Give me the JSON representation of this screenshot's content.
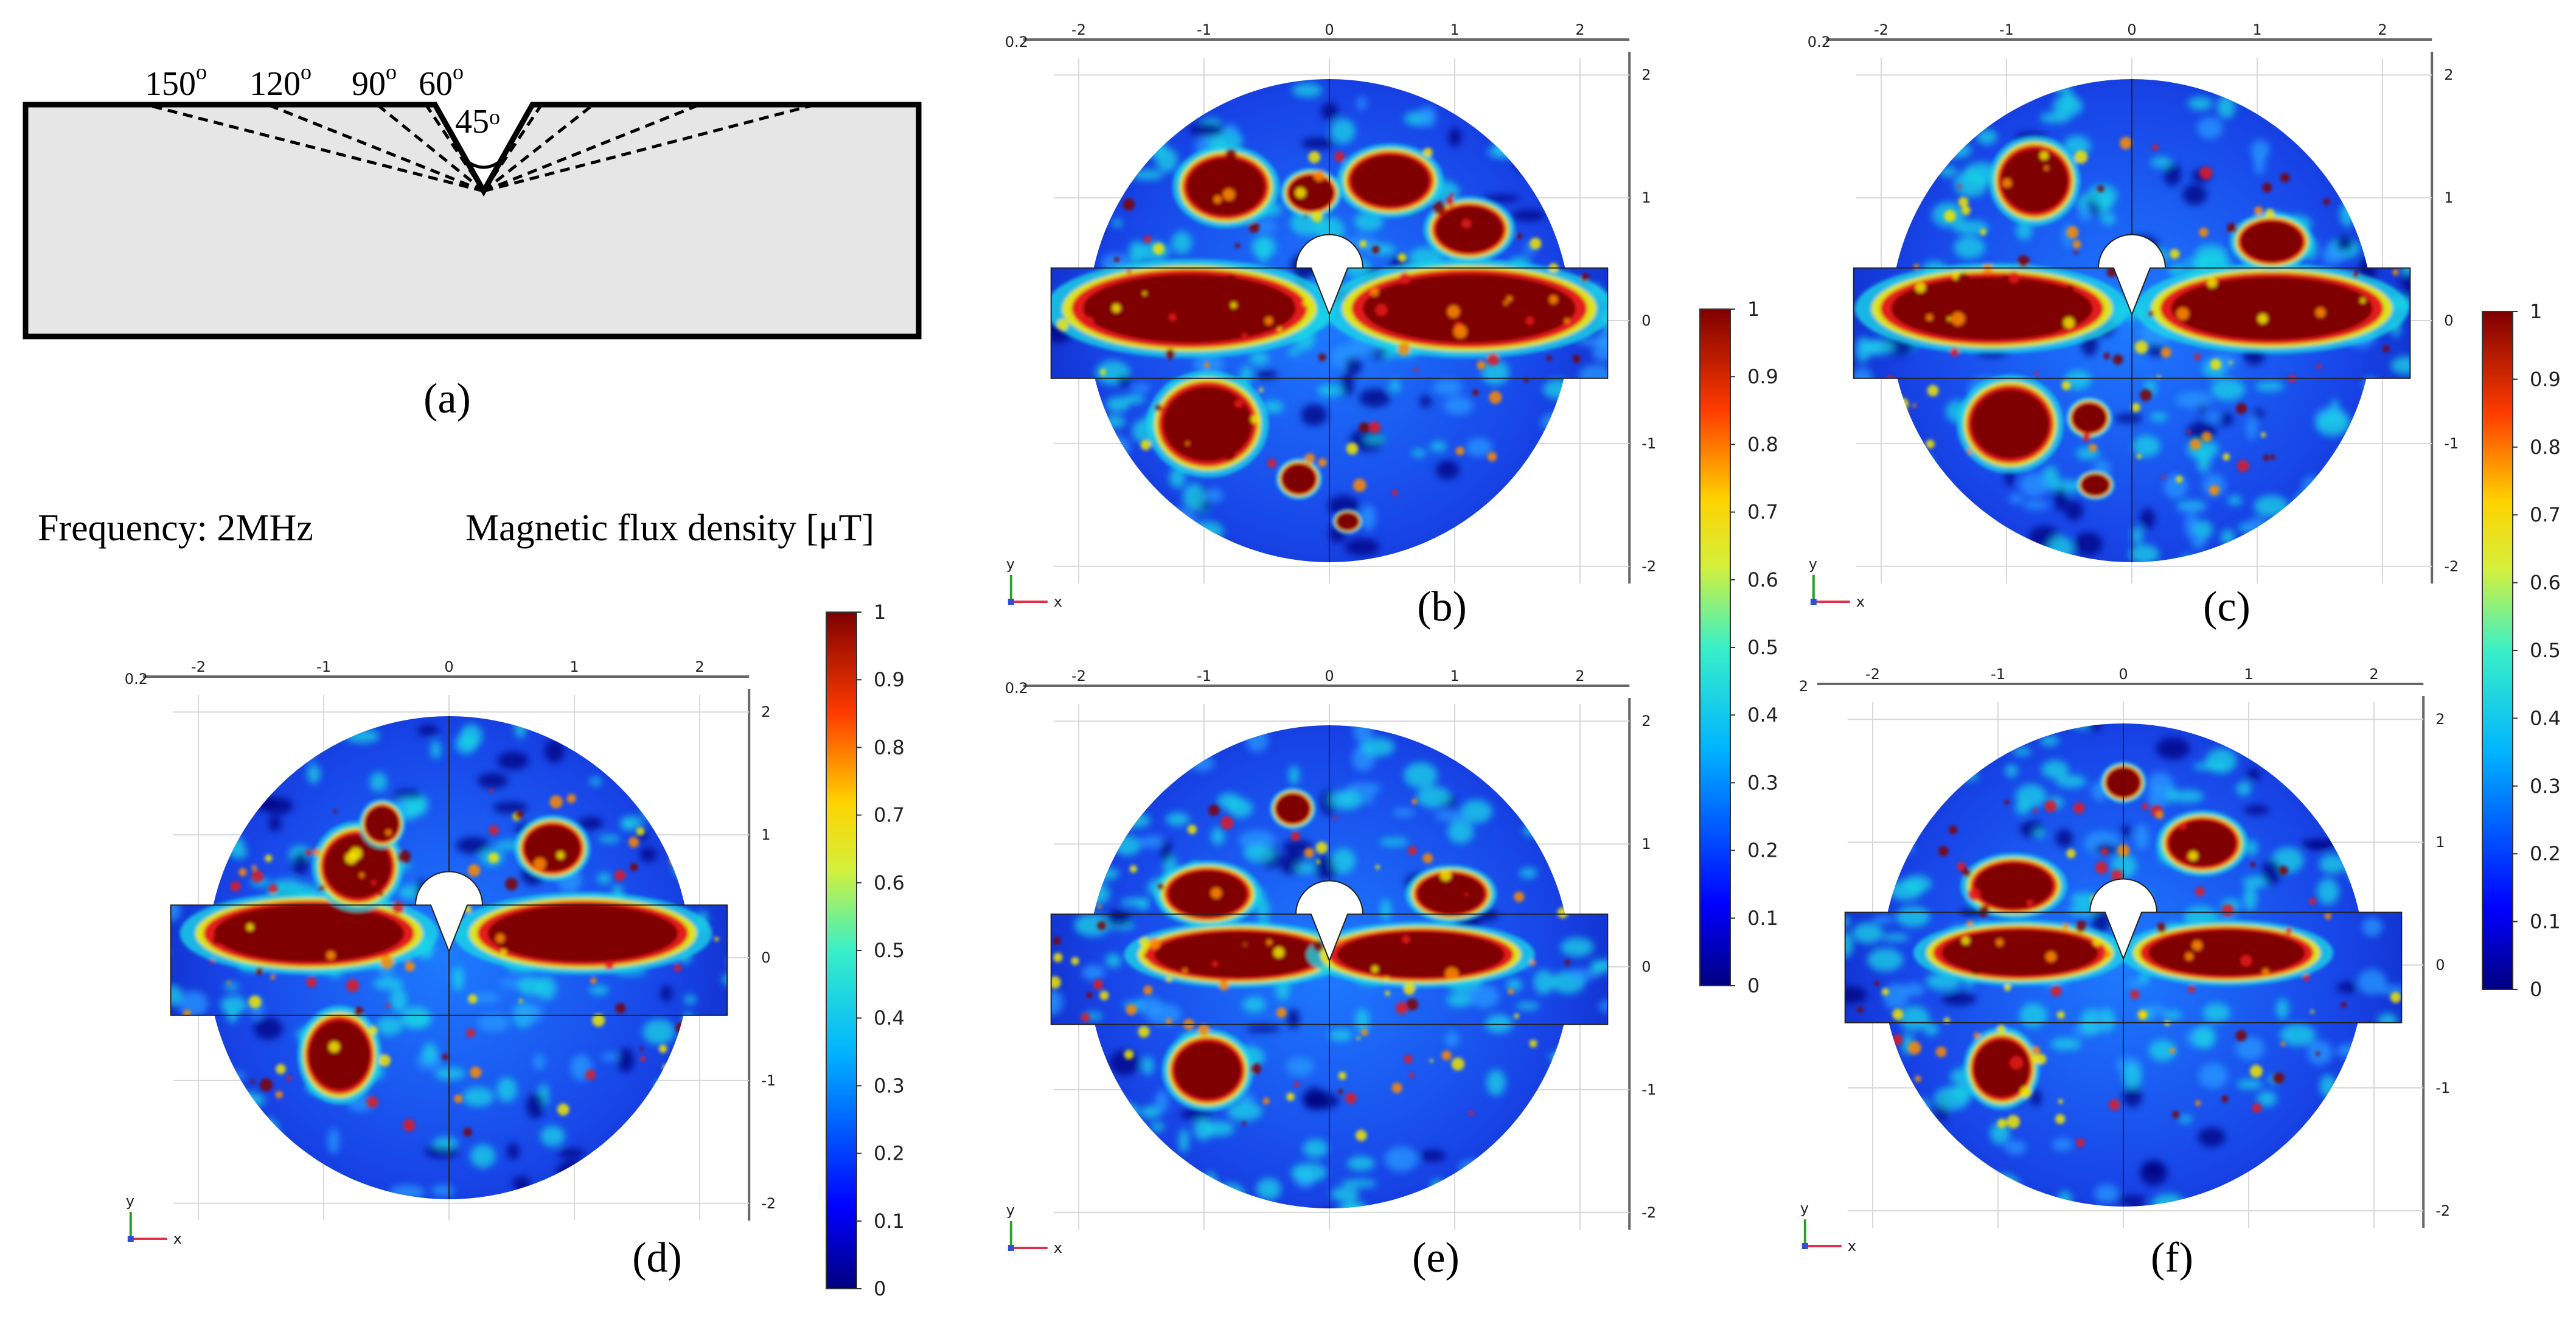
{
  "diagram": {
    "panel_label": "(a)",
    "angles": [
      "150",
      "120",
      "90",
      "60"
    ],
    "degree_mark": "o",
    "notch_angle": "45",
    "notch_degree_mark": "o"
  },
  "caption": {
    "frequency": "Frequency: 2MHz",
    "quantity": "Magnetic flux density [μT]"
  },
  "plots": [
    {
      "label": "(b)",
      "x_ticks": [
        "-2",
        "-1",
        "0",
        "1",
        "2"
      ],
      "y_ticks": [
        "2",
        "1",
        "0",
        "-1",
        "-2"
      ],
      "corner": "0.2",
      "y_axis": "y",
      "x_axis": "x"
    },
    {
      "label": "(c)",
      "x_ticks": [
        "-2",
        "-1",
        "0",
        "1",
        "2"
      ],
      "y_ticks": [
        "2",
        "1",
        "0",
        "-1",
        "-2"
      ],
      "corner": "0.2",
      "y_axis": "y",
      "x_axis": "x"
    },
    {
      "label": "(d)",
      "x_ticks": [
        "-2",
        "-1",
        "0",
        "1",
        "2"
      ],
      "y_ticks": [
        "2",
        "1",
        "0",
        "-1",
        "-2"
      ],
      "corner": "0.2",
      "y_axis": "y",
      "x_axis": "x"
    },
    {
      "label": "(e)",
      "x_ticks": [
        "-2",
        "-1",
        "0",
        "1",
        "2"
      ],
      "y_ticks": [
        "2",
        "1",
        "0",
        "-1",
        "-2"
      ],
      "corner": "0.2",
      "y_axis": "y",
      "x_axis": "x"
    },
    {
      "label": "(f)",
      "x_ticks": [
        "-2",
        "-1",
        "0",
        "1",
        "2"
      ],
      "y_ticks": [
        "2",
        "1",
        "0",
        "-1",
        "-2"
      ],
      "corner": "2",
      "y_axis": "y",
      "x_axis": "x"
    }
  ],
  "colorbar": {
    "ticks": [
      "1",
      "0.9",
      "0.8",
      "0.7",
      "0.6",
      "0.5",
      "0.4",
      "0.3",
      "0.2",
      "0.1",
      "0"
    ]
  },
  "colors": {
    "dark_red": "#7f0000",
    "red": "#e41a1c",
    "orange": "#ff8c00",
    "yellow": "#f2e800",
    "cyan": "#19d6e6",
    "blue": "#1a3fe0",
    "navy": "#00007f",
    "block_fill": "#e6e6e6"
  }
}
